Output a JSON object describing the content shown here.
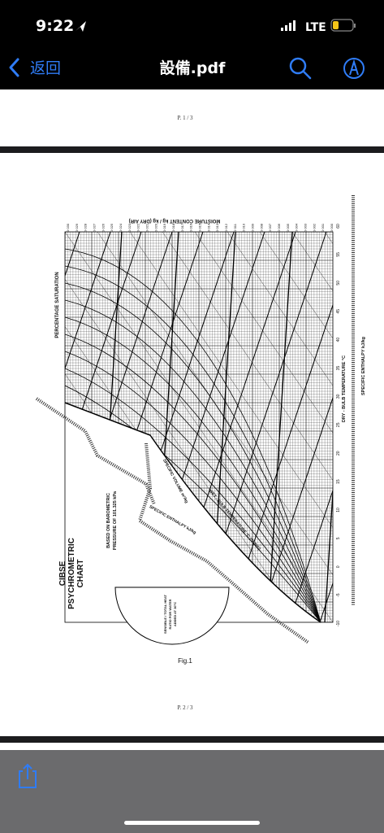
{
  "status_bar": {
    "time": "9:22",
    "network": "LTE"
  },
  "nav": {
    "back": "返回",
    "title": "設備.pdf"
  },
  "pages": [
    {
      "label": "P. 1 / 3"
    },
    {
      "label": "P. 2 / 3"
    }
  ],
  "figure": {
    "title_lines": [
      "CIBSE",
      "PSYCHROMETRIC",
      "CHART"
    ],
    "pressure_lines": [
      "BASED ON BAROMETRIC",
      "PRESSURE OF 101.325 kPa"
    ],
    "saturation_label": "PERCENTAGE SATURATION",
    "moisture_label": "MOISTURE CONTENT kg / kg (DRY AIR)",
    "dry_bulb_label": "DRY - BULB TEMPERATURE °C",
    "enthalpy_label": "SPECIFIC ENTHALPY kJ/kg",
    "volume_label": "SPECIFIC VOLUME m³/kg",
    "wet_bulb_label": "WET - BULB TEMPERATURE °C (SLING)",
    "enthalpy_diag_label": "SPECIFIC ENTHALPY kJ/kg",
    "ratio_lines": [
      "SENSIBLE / TOTAL HEAT",
      "RATIO FOR WATER",
      "ADDED AT 30°C"
    ],
    "dry_bulb_ticks": [
      "60",
      "55",
      "50",
      "45",
      "40",
      "35",
      "30",
      "25",
      "20",
      "15",
      "10",
      "5",
      "0",
      "-5",
      "-10"
    ],
    "moisture_ticks": [
      "0·030",
      "0·029",
      "0·028",
      "0·027",
      "0·026",
      "0·025",
      "0·024",
      "0·023",
      "0·022",
      "0·021",
      "0·020",
      "0·019",
      "0·018",
      "0·017",
      "0·016",
      "0·015",
      "0·014",
      "0·013",
      "0·012",
      "0·011",
      "0·010",
      "0·009",
      "0·008",
      "0·007",
      "0·006",
      "0·005",
      "0·004",
      "0·003",
      "0·002",
      "0·001",
      "0·000"
    ],
    "caption": "Fig.1"
  }
}
